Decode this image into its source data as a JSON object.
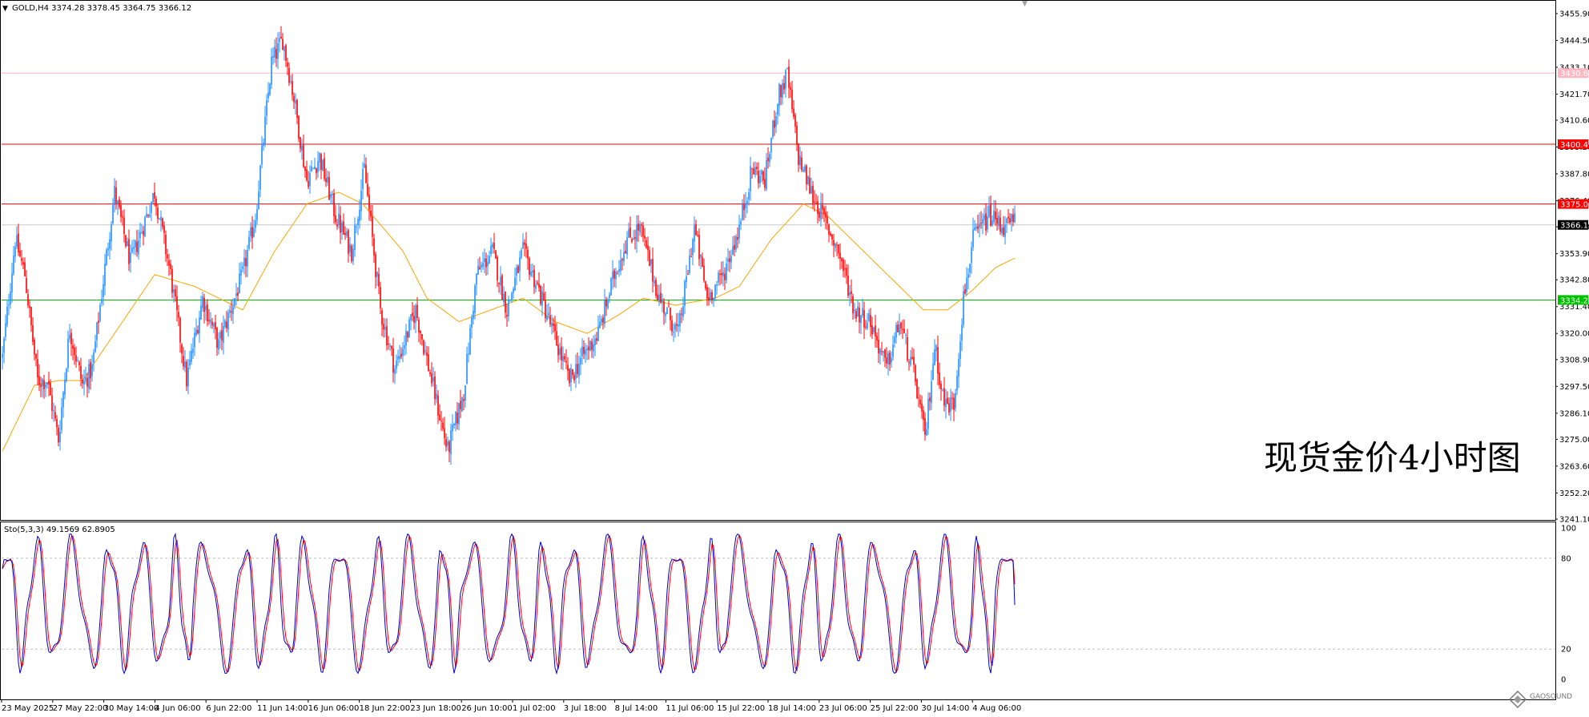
{
  "main_info": "GOLD,H4  3374.28 3378.45 3364.75 3366.12",
  "overlay_title": "现货金价4小时图",
  "osc_info": "Sto(5,3,3) 49.1569 62.8905",
  "price_levels": [
    {
      "label": "3430.63",
      "value": 3430.63,
      "color": "#ffb6c1"
    },
    {
      "label": "3400.41",
      "value": 3400.41,
      "color": "#ff0000"
    },
    {
      "label": "3375.00",
      "value": 3375.0,
      "color": "#ff0000"
    },
    {
      "label": "3366.12",
      "value": 3366.12,
      "color": "#000000"
    },
    {
      "label": "3334.22",
      "value": 3334.22,
      "color": "#00c000"
    }
  ],
  "price_axis": [
    "3455.90",
    "3444.50",
    "3433.10",
    "3421.70",
    "3410.60",
    "3399.20",
    "3387.80",
    "3376.40",
    "3365.30",
    "3353.90",
    "3342.80",
    "3331.40",
    "3320.00",
    "3308.90",
    "3297.50",
    "3286.10",
    "3275.00",
    "3263.60",
    "3252.20",
    "3241.10"
  ],
  "osc_axis": [
    "100",
    "80",
    "20",
    "0"
  ],
  "time_axis": [
    "23 May 2025",
    "27 May 22:00",
    "30 May 14:00",
    "4 Jun 06:00",
    "6 Jun 22:00",
    "11 Jun 14:00",
    "16 Jun 06:00",
    "18 Jun 22:00",
    "23 Jun 18:00",
    "26 Jun 10:00",
    "1 Jul 02:00",
    "3 Jul 18:00",
    "8 Jul 14:00",
    "11 Jul 06:00",
    "15 Jul 22:00",
    "18 Jul 14:00",
    "23 Jul 06:00",
    "25 Jul 22:00",
    "30 Jul 14:00",
    "4 Aug 06:00"
  ],
  "watermark": "GAOSOUND",
  "colors": {
    "bull": "#1e90ff",
    "bear": "#ff0000",
    "ma": "#ffa500",
    "stoch_main": "#0000cd",
    "stoch_signal": "#ff0000"
  },
  "chart_data": {
    "type": "candlestick",
    "symbol": "GOLD",
    "timeframe": "H4",
    "ylim": [
      3241.1,
      3461.0
    ],
    "osc_ylim": [
      0,
      100
    ],
    "anchors": [
      [
        0,
        3310
      ],
      [
        8,
        3360
      ],
      [
        14,
        3345
      ],
      [
        22,
        3300
      ],
      [
        28,
        3300
      ],
      [
        35,
        3275
      ],
      [
        42,
        3322
      ],
      [
        50,
        3298
      ],
      [
        56,
        3305
      ],
      [
        70,
        3380
      ],
      [
        80,
        3350
      ],
      [
        95,
        3380
      ],
      [
        105,
        3345
      ],
      [
        115,
        3300
      ],
      [
        125,
        3335
      ],
      [
        135,
        3315
      ],
      [
        150,
        3345
      ],
      [
        158,
        3370
      ],
      [
        168,
        3435
      ],
      [
        175,
        3445
      ],
      [
        182,
        3420
      ],
      [
        190,
        3385
      ],
      [
        198,
        3395
      ],
      [
        208,
        3370
      ],
      [
        218,
        3355
      ],
      [
        226,
        3390
      ],
      [
        236,
        3330
      ],
      [
        245,
        3305
      ],
      [
        258,
        3330
      ],
      [
        268,
        3300
      ],
      [
        278,
        3270
      ],
      [
        288,
        3295
      ],
      [
        296,
        3345
      ],
      [
        306,
        3355
      ],
      [
        315,
        3330
      ],
      [
        325,
        3355
      ],
      [
        334,
        3340
      ],
      [
        344,
        3320
      ],
      [
        354,
        3300
      ],
      [
        362,
        3310
      ],
      [
        372,
        3320
      ],
      [
        382,
        3345
      ],
      [
        390,
        3360
      ],
      [
        398,
        3365
      ],
      [
        410,
        3335
      ],
      [
        422,
        3320
      ],
      [
        432,
        3365
      ],
      [
        440,
        3335
      ],
      [
        450,
        3345
      ],
      [
        460,
        3365
      ],
      [
        468,
        3390
      ],
      [
        476,
        3385
      ],
      [
        484,
        3420
      ],
      [
        490,
        3430
      ],
      [
        497,
        3395
      ],
      [
        505,
        3380
      ],
      [
        512,
        3370
      ],
      [
        522,
        3355
      ],
      [
        532,
        3330
      ],
      [
        542,
        3325
      ],
      [
        552,
        3305
      ],
      [
        560,
        3325
      ],
      [
        570,
        3300
      ],
      [
        576,
        3275
      ],
      [
        582,
        3315
      ],
      [
        588,
        3290
      ],
      [
        594,
        3290
      ],
      [
        600,
        3335
      ],
      [
        606,
        3360
      ],
      [
        616,
        3370
      ],
      [
        626,
        3365
      ],
      [
        632,
        3368
      ]
    ],
    "ma_anchors": [
      [
        0,
        3270
      ],
      [
        20,
        3298
      ],
      [
        35,
        3300
      ],
      [
        50,
        3300
      ],
      [
        70,
        3320
      ],
      [
        95,
        3345
      ],
      [
        120,
        3340
      ],
      [
        150,
        3330
      ],
      [
        170,
        3355
      ],
      [
        190,
        3375
      ],
      [
        210,
        3380
      ],
      [
        225,
        3375
      ],
      [
        250,
        3355
      ],
      [
        265,
        3335
      ],
      [
        285,
        3325
      ],
      [
        305,
        3330
      ],
      [
        325,
        3335
      ],
      [
        345,
        3325
      ],
      [
        365,
        3320
      ],
      [
        385,
        3328
      ],
      [
        400,
        3335
      ],
      [
        420,
        3332
      ],
      [
        445,
        3335
      ],
      [
        460,
        3340
      ],
      [
        480,
        3360
      ],
      [
        500,
        3375
      ],
      [
        515,
        3370
      ],
      [
        530,
        3360
      ],
      [
        545,
        3350
      ],
      [
        560,
        3340
      ],
      [
        575,
        3330
      ],
      [
        590,
        3330
      ],
      [
        605,
        3338
      ],
      [
        620,
        3348
      ],
      [
        632,
        3352
      ]
    ],
    "stoch_count": 633,
    "last_stoch_main": 49.1569,
    "last_stoch_signal": 62.8905
  }
}
